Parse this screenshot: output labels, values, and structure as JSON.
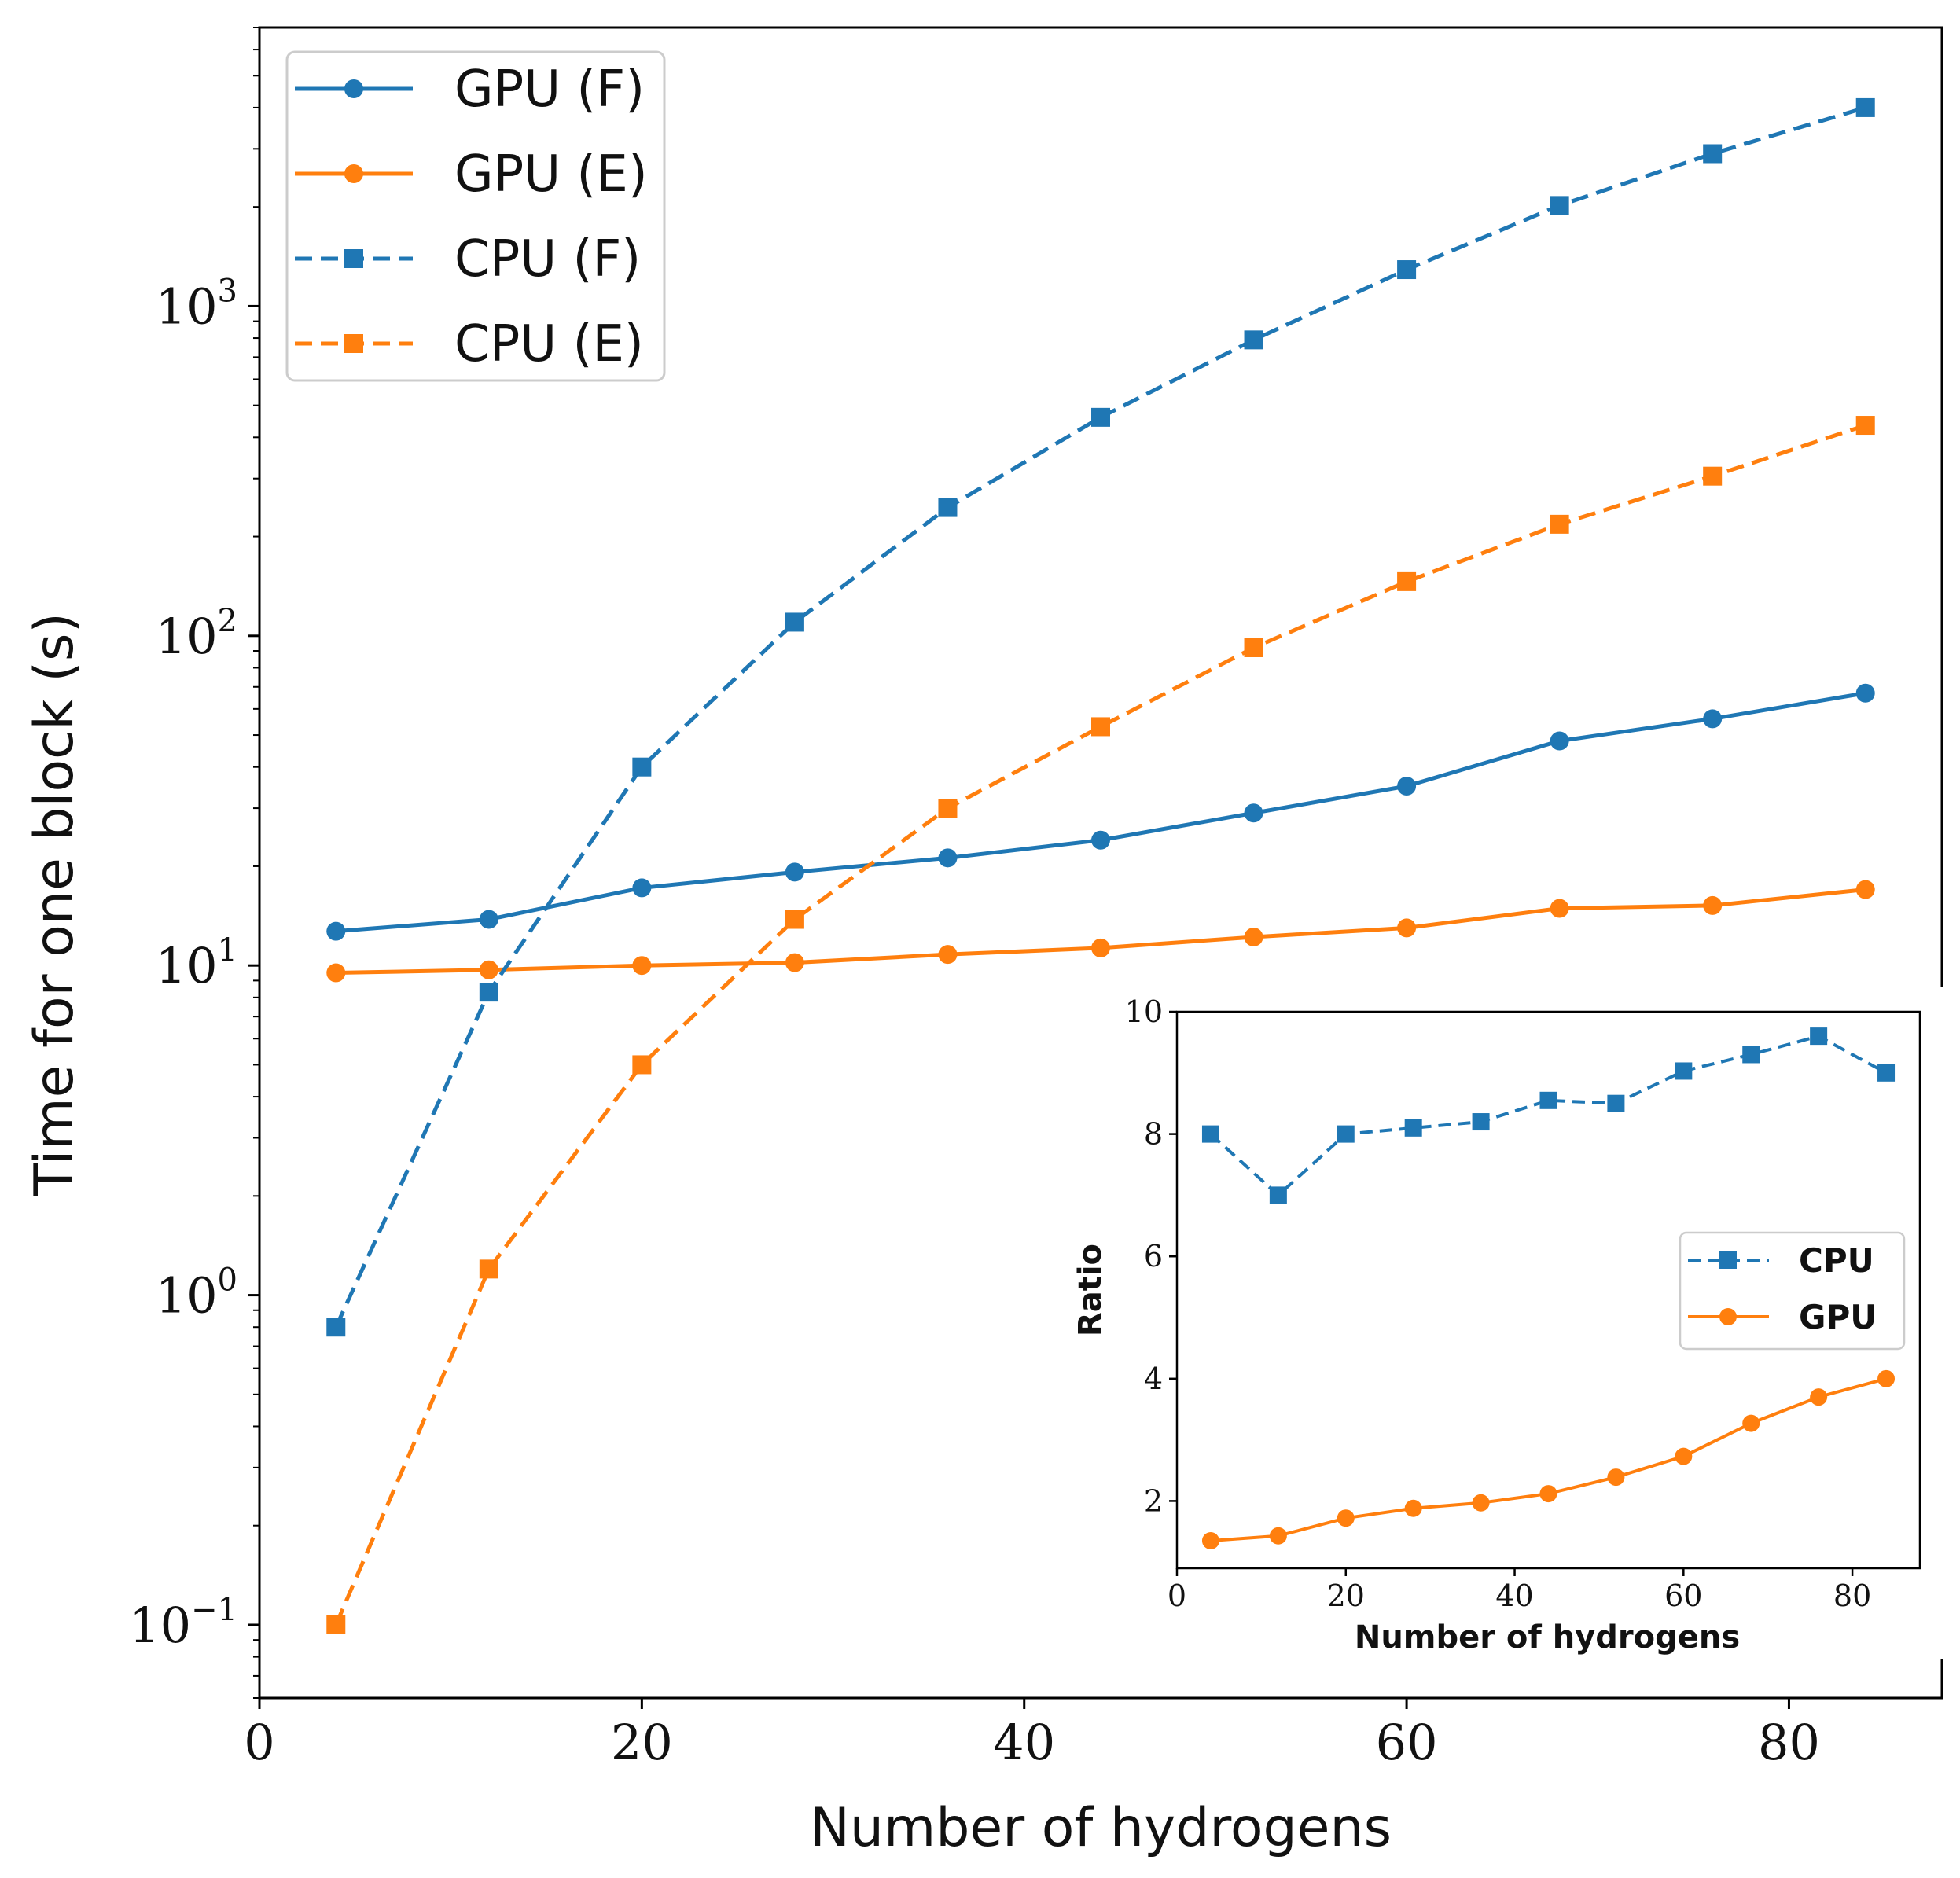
{
  "colors": {
    "blue": "#1f77b4",
    "orange": "#ff7f0e"
  },
  "chart_data": [
    {
      "type": "line",
      "xlabel": "Number of hydrogens",
      "ylabel": "Time for one block (s)",
      "xlim": [
        0,
        88
      ],
      "ylim": [
        0.06,
        7000
      ],
      "yscale": "log",
      "xticks": [
        0,
        20,
        40,
        60,
        80
      ],
      "xtick_labels": [
        "0",
        "20",
        "40",
        "60",
        "80"
      ],
      "yticks": [
        0.1,
        1,
        10,
        100,
        1000
      ],
      "ytick_labels": [
        {
          "base": "10",
          "exp": "−1"
        },
        {
          "base": "10",
          "exp": "0"
        },
        {
          "base": "10",
          "exp": "1"
        },
        {
          "base": "10",
          "exp": "2"
        },
        {
          "base": "10",
          "exp": "3"
        }
      ],
      "x": [
        4,
        12,
        20,
        28,
        36,
        44,
        52,
        60,
        68,
        76,
        84
      ],
      "series": [
        {
          "name": "GPU (F)",
          "style": "solid",
          "marker": "circle",
          "color": "#1f77b4",
          "values": [
            12.7,
            13.8,
            17.2,
            19.2,
            21.2,
            24.0,
            29.0,
            35.0,
            48.0,
            56.0,
            67.0
          ]
        },
        {
          "name": "GPU (E)",
          "style": "solid",
          "marker": "circle",
          "color": "#ff7f0e",
          "values": [
            9.5,
            9.7,
            10.0,
            10.2,
            10.8,
            11.3,
            12.2,
            13.0,
            14.9,
            15.2,
            17.0
          ]
        },
        {
          "name": "CPU (F)",
          "style": "dashed",
          "marker": "square",
          "color": "#1f77b4",
          "values": [
            0.8,
            8.3,
            40.0,
            110.0,
            245.0,
            460.0,
            790.0,
            1290.0,
            2020.0,
            2900.0,
            4000.0
          ]
        },
        {
          "name": "CPU (E)",
          "style": "dashed",
          "marker": "square",
          "color": "#ff7f0e",
          "values": [
            0.1,
            1.2,
            5.0,
            13.8,
            30.0,
            53.0,
            92.0,
            146.0,
            218.0,
            305.0,
            435.0
          ]
        }
      ],
      "legend_position": "top-left"
    },
    {
      "type": "line",
      "xlabel": "Number of hydrogens",
      "ylabel": "Ratio",
      "xlim": [
        0,
        88
      ],
      "ylim": [
        0.9,
        10
      ],
      "xticks": [
        0,
        20,
        40,
        60,
        80
      ],
      "xtick_labels": [
        "0",
        "20",
        "40",
        "60",
        "80"
      ],
      "yticks": [
        2,
        4,
        6,
        8,
        10
      ],
      "ytick_labels": [
        "2",
        "4",
        "6",
        "8",
        "10"
      ],
      "x": [
        4,
        12,
        20,
        28,
        36,
        44,
        52,
        60,
        68,
        76,
        84
      ],
      "series": [
        {
          "name": "CPU",
          "style": "dashed",
          "marker": "square",
          "color": "#1f77b4",
          "values": [
            8.0,
            7.0,
            8.0,
            8.1,
            8.2,
            8.55,
            8.5,
            9.03,
            9.3,
            9.6,
            9.0
          ]
        },
        {
          "name": "GPU",
          "style": "solid",
          "marker": "circle",
          "color": "#ff7f0e",
          "values": [
            1.35,
            1.43,
            1.72,
            1.88,
            1.97,
            2.12,
            2.39,
            2.73,
            3.27,
            3.7,
            4.0
          ]
        }
      ],
      "legend_position": "center-right"
    }
  ]
}
